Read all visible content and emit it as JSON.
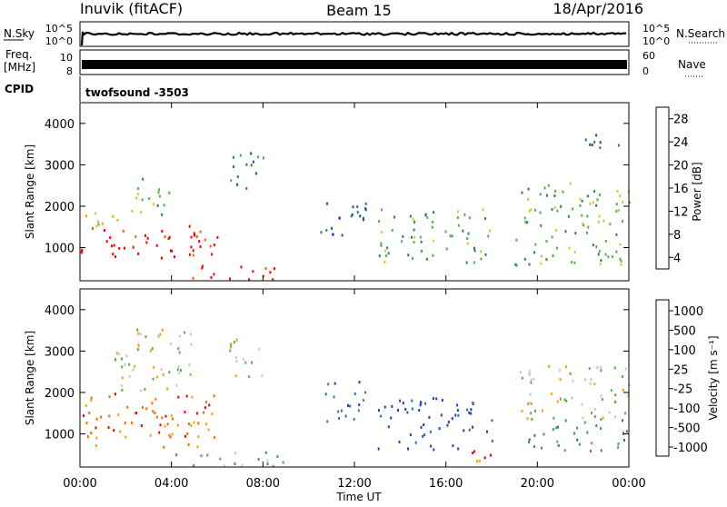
{
  "header": {
    "station": "Inuvik (fitACF)",
    "beam": "Beam 15",
    "date": "18/Apr/2016"
  },
  "strips": {
    "nsky": {
      "left_label": "N.Sky",
      "left_ticks": [
        "10^5",
        "10^0"
      ],
      "right_ticks": [
        "10^5",
        "10^0"
      ],
      "right_label": "N.Search"
    },
    "freq": {
      "left_label_1": "Freq.",
      "left_label_2": "[MHz]",
      "left_ticks": [
        "10",
        "8"
      ],
      "right_ticks": [
        "60",
        "0"
      ],
      "right_label": "Nave"
    },
    "cpid": {
      "left_label": "CPID",
      "mode": "twofsound -3503"
    }
  },
  "colorbars": {
    "power": {
      "label": "Power [dB]",
      "ticks": [
        "28",
        "24",
        "20",
        "16",
        "12",
        "8",
        "4"
      ],
      "colors": [
        "#0000ff",
        "#1f4f9f",
        "#2f7f5f",
        "#55b04a",
        "#c8cf2a",
        "#ffa000",
        "#ff5a00",
        "#ff0000"
      ]
    },
    "velocity": {
      "label": "Velocity [m s⁻¹]",
      "ticks": [
        "1000",
        "500",
        "100",
        "25",
        "-25",
        "-100",
        "-500",
        "-1000"
      ],
      "colors": [
        "#1f3fbf",
        "#2f6fa0",
        "#3f8f6f",
        "#55b04a",
        "#c8c8c8",
        "#ffa000",
        "#ff6a00",
        "#ff0000"
      ]
    }
  },
  "chart_data": [
    {
      "type": "heatmap",
      "title": "",
      "panel": "power",
      "xlabel": "",
      "ylabel": "Slant Range [km]",
      "x_ticks": [
        "00:00",
        "04:00",
        "08:00",
        "12:00",
        "16:00",
        "20:00",
        "00:00"
      ],
      "x_hours": [
        0,
        4,
        8,
        12,
        16,
        20,
        24
      ],
      "y_ticks": [
        1000,
        2000,
        3000,
        4000
      ],
      "ylim": [
        200,
        4500
      ],
      "xlim": [
        0,
        24
      ],
      "colorbar": "power",
      "regions": [
        {
          "t0": 0.0,
          "t1": 6.0,
          "r0": 700,
          "r1": 1550,
          "level": 7
        },
        {
          "t0": 0.0,
          "t1": 2.0,
          "r0": 1550,
          "r1": 2000,
          "level": 4
        },
        {
          "t0": 2.0,
          "t1": 4.0,
          "r0": 1800,
          "r1": 2700,
          "level": 3
        },
        {
          "t0": 4.0,
          "t1": 8.5,
          "r0": 250,
          "r1": 600,
          "level": 7
        },
        {
          "t0": 6.5,
          "t1": 8.0,
          "r0": 2400,
          "r1": 3400,
          "level": 2
        },
        {
          "t0": 10.5,
          "t1": 12.5,
          "r0": 1300,
          "r1": 2300,
          "level": 1
        },
        {
          "t0": 13.0,
          "t1": 18.0,
          "r0": 650,
          "r1": 2000,
          "level": 3
        },
        {
          "t0": 19.0,
          "t1": 24.0,
          "r0": 600,
          "r1": 2600,
          "level": 3
        },
        {
          "t0": 22.0,
          "t1": 23.8,
          "r0": 3300,
          "r1": 3800,
          "level": 1
        }
      ]
    },
    {
      "type": "heatmap",
      "title": "",
      "panel": "velocity",
      "xlabel": "Time UT",
      "ylabel": "Slant Range [km]",
      "x_ticks": [
        "00:00",
        "04:00",
        "08:00",
        "12:00",
        "16:00",
        "20:00",
        "00:00"
      ],
      "x_hours": [
        0,
        4,
        8,
        12,
        16,
        20,
        24
      ],
      "y_ticks": [
        1000,
        2000,
        3000,
        4000
      ],
      "ylim": [
        200,
        4500
      ],
      "xlim": [
        0,
        24
      ],
      "colorbar": "velocity",
      "regions": [
        {
          "t0": 0.0,
          "t1": 6.0,
          "r0": 700,
          "r1": 2000,
          "level": 6
        },
        {
          "t0": 1.5,
          "t1": 5.0,
          "r0": 2000,
          "r1": 3600,
          "level": 4
        },
        {
          "t0": 4.0,
          "t1": 9.0,
          "r0": 250,
          "r1": 600,
          "level": 3
        },
        {
          "t0": 6.5,
          "t1": 8.0,
          "r0": 2400,
          "r1": 3400,
          "level": 4
        },
        {
          "t0": 10.5,
          "t1": 12.5,
          "r0": 1300,
          "r1": 2300,
          "level": 1
        },
        {
          "t0": 13.0,
          "t1": 18.0,
          "r0": 650,
          "r1": 1900,
          "level": 0
        },
        {
          "t0": 17.0,
          "t1": 18.0,
          "r0": 300,
          "r1": 1000,
          "level": 6
        },
        {
          "t0": 19.0,
          "t1": 24.0,
          "r0": 1400,
          "r1": 2700,
          "level": 4
        },
        {
          "t0": 19.5,
          "t1": 24.0,
          "r0": 600,
          "r1": 1400,
          "level": 2
        }
      ]
    }
  ]
}
